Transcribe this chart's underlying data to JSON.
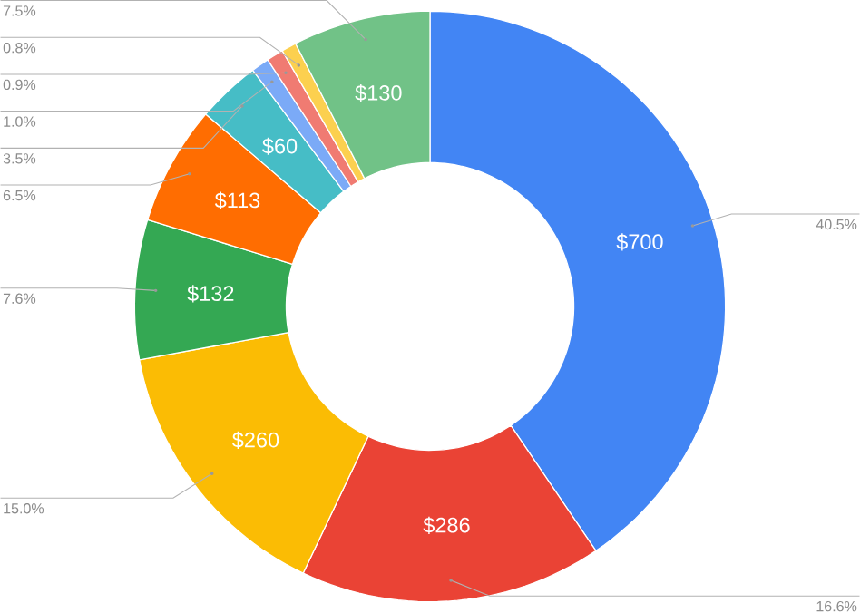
{
  "chart_data": {
    "type": "donut",
    "categories": [
      null,
      null,
      null,
      null,
      null,
      null,
      null,
      null,
      null,
      null
    ],
    "values": [
      700,
      286,
      260,
      132,
      113,
      60,
      17,
      16,
      14,
      130
    ],
    "colors": [
      "#4285f4",
      "#ea4335",
      "#fbbc04",
      "#34a853",
      "#ff6d01",
      "#46bdc6",
      "#7baaf7",
      "#f07b72",
      "#fcd04f",
      "#71c287"
    ],
    "value_labels": [
      "$700",
      "$286",
      "$260",
      "$132",
      "$113",
      "$60",
      null,
      null,
      null,
      "$130"
    ],
    "annotations": [
      "40.5%",
      "16.6%",
      "15.0%",
      "7.6%",
      "6.5%",
      "3.5%",
      "1.0%",
      "0.9%",
      "0.8%",
      "7.5%"
    ]
  }
}
